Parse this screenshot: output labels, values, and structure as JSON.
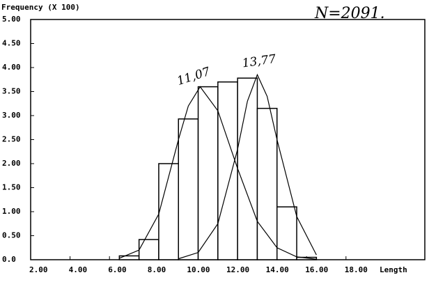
{
  "chart_data": {
    "type": "histogram",
    "title": "Frequency (X 100)",
    "x_label": "Length",
    "annotations": [
      "11,07",
      "13,77",
      "N=2091."
    ],
    "bins": [
      6.5,
      7.5,
      8.5,
      9.5,
      10.5,
      11.5,
      12.5,
      13.5,
      14.5,
      15.5,
      16.5
    ],
    "values": [
      0.08,
      0.42,
      2.0,
      2.93,
      3.6,
      3.7,
      3.78,
      3.15,
      1.1,
      0.05
    ],
    "color": "#ffffff",
    "lines": [
      {
        "x": [
          6.5,
          7.5,
          8.5,
          9.5,
          10.0,
          10.6,
          11.5,
          12.5,
          13.5,
          14.5,
          15.5,
          16.5
        ],
        "values": [
          0.03,
          0.2,
          0.95,
          2.5,
          3.2,
          3.6,
          3.1,
          1.9,
          0.8,
          0.25,
          0.06,
          0.01
        ]
      },
      {
        "x": [
          9.5,
          10.5,
          11.5,
          12.5,
          13.0,
          13.5,
          14.0,
          14.5,
          15.5,
          16.5
        ],
        "values": [
          0.02,
          0.15,
          0.75,
          2.3,
          3.3,
          3.85,
          3.4,
          2.5,
          0.9,
          0.1
        ]
      }
    ],
    "xlim": [
      2,
      22
    ],
    "ylim": [
      0,
      5
    ],
    "xticks": [
      {
        "value": 2,
        "label": "2.00"
      },
      {
        "value": 4,
        "label": "4.00"
      },
      {
        "value": 6,
        "label": "6.00"
      },
      {
        "value": 8,
        "label": "8.00"
      },
      {
        "value": 10,
        "label": "10.00"
      },
      {
        "value": 12,
        "label": "12.00"
      },
      {
        "value": 14,
        "label": "14.00"
      },
      {
        "value": 16,
        "label": "16.00"
      },
      {
        "value": 18,
        "label": "18.00"
      }
    ],
    "yticks": [
      {
        "value": 0,
        "label": "0.0"
      },
      {
        "value": 0.5,
        "label": "0.50"
      },
      {
        "value": 1,
        "label": "1.00"
      },
      {
        "value": 1.5,
        "label": "1.50"
      },
      {
        "value": 2,
        "label": "2.00"
      },
      {
        "value": 2.5,
        "label": "2.50"
      },
      {
        "value": 3,
        "label": "3.00"
      },
      {
        "value": 3.5,
        "label": "3.50"
      },
      {
        "value": 4,
        "label": "4.00"
      },
      {
        "value": 4.5,
        "label": "4.50"
      },
      {
        "value": 5,
        "label": "5.00"
      }
    ]
  }
}
